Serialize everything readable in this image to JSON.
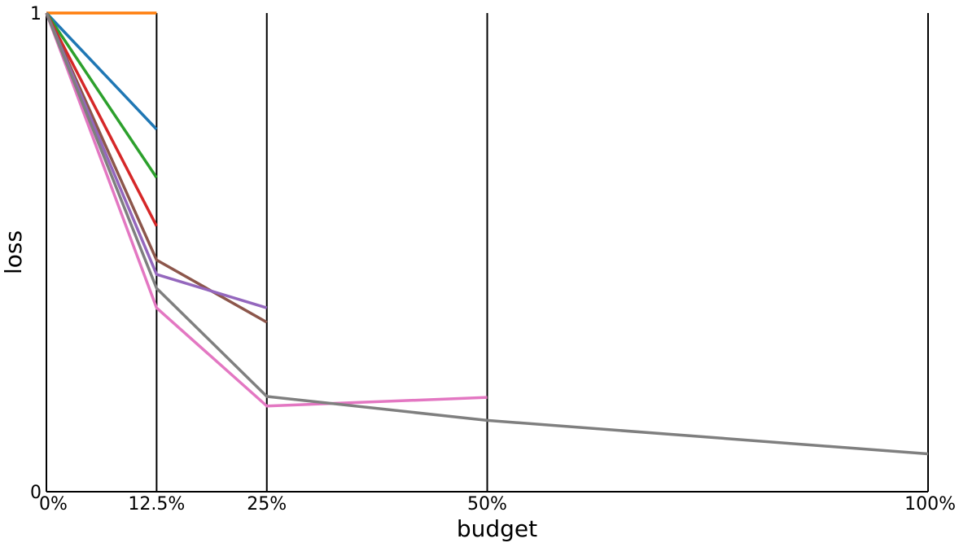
{
  "chart_data": {
    "type": "line",
    "title": "",
    "xlabel": "budget",
    "ylabel": "loss",
    "x_ticks": [
      {
        "value": 0,
        "label": "0%"
      },
      {
        "value": 12.5,
        "label": "12.5%"
      },
      {
        "value": 25,
        "label": "25%"
      },
      {
        "value": 50,
        "label": "50%"
      },
      {
        "value": 100,
        "label": "100%"
      }
    ],
    "y_ticks": [
      {
        "value": 0,
        "label": "0"
      },
      {
        "value": 1,
        "label": "1"
      }
    ],
    "xlim": [
      0,
      100
    ],
    "ylim": [
      0,
      1
    ],
    "grid": "vertical lines at x ticks",
    "legend": "none",
    "series": [
      {
        "color": "#ff7f0e",
        "x": [
          0,
          12.5
        ],
        "y": [
          1.0,
          1.0
        ]
      },
      {
        "color": "#1f77b4",
        "x": [
          0,
          12.5
        ],
        "y": [
          1.0,
          0.757
        ]
      },
      {
        "color": "#2ca02c",
        "x": [
          0,
          12.5
        ],
        "y": [
          1.0,
          0.656
        ]
      },
      {
        "color": "#d62728",
        "x": [
          0,
          12.5
        ],
        "y": [
          1.0,
          0.555
        ]
      },
      {
        "color": "#8c564b",
        "x": [
          0,
          12.5,
          25
        ],
        "y": [
          1.0,
          0.484,
          0.354
        ]
      },
      {
        "color": "#9467bd",
        "x": [
          0,
          12.5,
          25
        ],
        "y": [
          1.0,
          0.454,
          0.384
        ]
      },
      {
        "color": "#e377c2",
        "x": [
          0,
          12.5,
          25,
          50
        ],
        "y": [
          1.0,
          0.384,
          0.179,
          0.197
        ]
      },
      {
        "color": "#7f7f7f",
        "x": [
          0,
          12.5,
          25,
          50,
          100
        ],
        "y": [
          1.0,
          0.425,
          0.199,
          0.149,
          0.079
        ]
      }
    ]
  }
}
